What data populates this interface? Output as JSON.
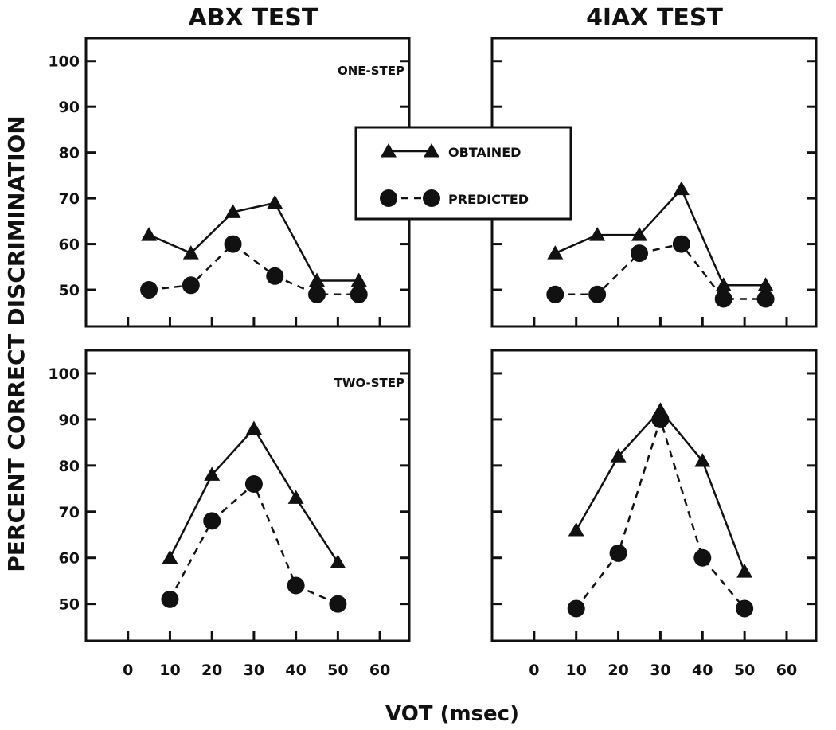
{
  "figure": {
    "column_titles": [
      "ABX TEST",
      "4IAX TEST"
    ],
    "ylabel": "PERCENT CORRECT DISCRIMINATION",
    "xlabel": "VOT (msec)"
  },
  "legend": {
    "obtained": "OBTAINED",
    "predicted": "PREDICTED"
  },
  "chart_data": [
    {
      "type": "line",
      "title": "ONE-STEP",
      "column": "ABX TEST",
      "xlim": [
        -10,
        67
      ],
      "ylim": [
        42,
        105
      ],
      "x_ticks": [
        0,
        10,
        20,
        30,
        40,
        50,
        60
      ],
      "y_ticks": [
        50,
        60,
        70,
        80,
        90,
        100
      ],
      "series": [
        {
          "name": "OBTAINED",
          "marker": "triangle",
          "line": "solid",
          "x": [
            5,
            15,
            25,
            35,
            45,
            55
          ],
          "y": [
            62,
            58,
            67,
            69,
            52,
            52
          ]
        },
        {
          "name": "PREDICTED",
          "marker": "circle",
          "line": "dashed",
          "x": [
            5,
            15,
            25,
            35,
            45,
            55
          ],
          "y": [
            50,
            51,
            60,
            53,
            49,
            49
          ]
        }
      ]
    },
    {
      "type": "line",
      "title": "",
      "column": "4IAX TEST",
      "xlim": [
        -10,
        67
      ],
      "ylim": [
        42,
        105
      ],
      "x_ticks": [
        0,
        10,
        20,
        30,
        40,
        50,
        60
      ],
      "y_ticks": [
        50,
        60,
        70,
        80,
        90,
        100
      ],
      "series": [
        {
          "name": "OBTAINED",
          "marker": "triangle",
          "line": "solid",
          "x": [
            5,
            15,
            25,
            35,
            45,
            55
          ],
          "y": [
            58,
            62,
            62,
            72,
            51,
            51
          ]
        },
        {
          "name": "PREDICTED",
          "marker": "circle",
          "line": "dashed",
          "x": [
            5,
            15,
            25,
            35,
            45,
            55
          ],
          "y": [
            49,
            49,
            58,
            60,
            48,
            48
          ]
        }
      ]
    },
    {
      "type": "line",
      "title": "TWO-STEP",
      "column": "ABX TEST",
      "xlim": [
        -10,
        67
      ],
      "ylim": [
        42,
        105
      ],
      "x_ticks": [
        0,
        10,
        20,
        30,
        40,
        50,
        60
      ],
      "x_tick_labels": [
        "0",
        "10",
        "20",
        "30",
        "40",
        "50",
        "60"
      ],
      "y_ticks": [
        50,
        60,
        70,
        80,
        90,
        100
      ],
      "series": [
        {
          "name": "OBTAINED",
          "marker": "triangle",
          "line": "solid",
          "x": [
            10,
            20,
            30,
            40,
            50
          ],
          "y": [
            60,
            78,
            88,
            73,
            59
          ]
        },
        {
          "name": "PREDICTED",
          "marker": "circle",
          "line": "dashed",
          "x": [
            10,
            20,
            30,
            40,
            50
          ],
          "y": [
            51,
            68,
            76,
            54,
            50
          ]
        }
      ]
    },
    {
      "type": "line",
      "title": "",
      "column": "4IAX TEST",
      "xlim": [
        -10,
        67
      ],
      "ylim": [
        42,
        105
      ],
      "x_ticks": [
        0,
        10,
        20,
        30,
        40,
        50,
        60
      ],
      "x_tick_labels": [
        "0",
        "10",
        "20",
        "30",
        "40",
        "50",
        "60"
      ],
      "y_ticks": [
        50,
        60,
        70,
        80,
        90,
        100
      ],
      "series": [
        {
          "name": "OBTAINED",
          "marker": "triangle",
          "line": "solid",
          "x": [
            10,
            20,
            30,
            40,
            50
          ],
          "y": [
            66,
            82,
            92,
            81,
            57
          ]
        },
        {
          "name": "PREDICTED",
          "marker": "circle",
          "line": "dashed",
          "x": [
            10,
            20,
            30,
            40,
            50
          ],
          "y": [
            49,
            61,
            90,
            60,
            49
          ]
        }
      ]
    }
  ]
}
